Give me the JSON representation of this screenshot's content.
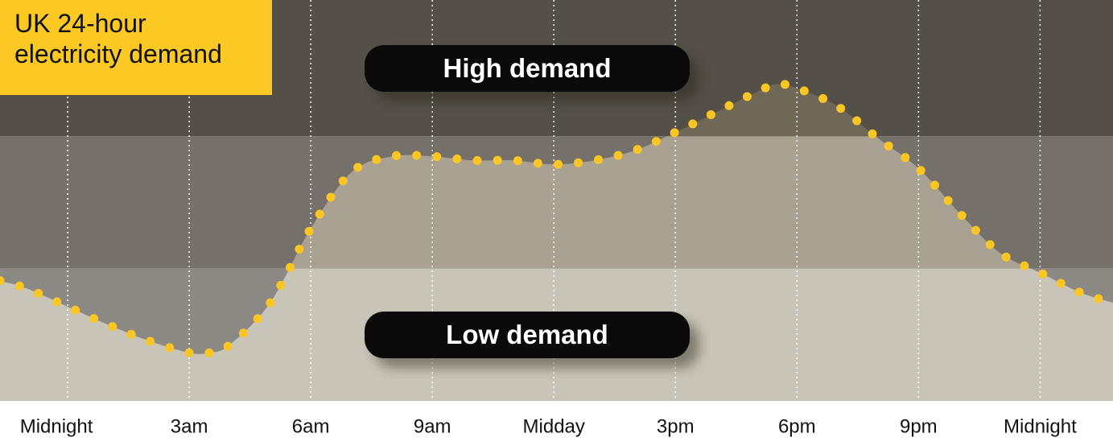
{
  "chart_data": {
    "type": "line",
    "title": "UK 24-hour electricity demand",
    "x": [
      -1.67,
      -1,
      0,
      1,
      2,
      3,
      3.5,
      4,
      5,
      6,
      7,
      8,
      9,
      10,
      11,
      12,
      13,
      14,
      15,
      16,
      17,
      17.5,
      18,
      19,
      20,
      21,
      22,
      23,
      24,
      25,
      25.8
    ],
    "values": [
      30,
      28,
      23.5,
      19,
      15,
      12,
      12,
      14,
      24.5,
      43,
      57,
      61,
      61,
      60,
      60,
      59,
      60,
      62.5,
      67,
      72,
      77,
      79,
      78,
      73.5,
      65.5,
      58,
      47,
      37,
      32,
      27,
      24.5
    ],
    "color": "#f9c623",
    "xlim": [
      -1.67,
      25.8
    ],
    "ylim": [
      0,
      100
    ],
    "xticks": [
      {
        "value": 0,
        "label": "Midnight"
      },
      {
        "value": 3,
        "label": "3am"
      },
      {
        "value": 6,
        "label": "6am"
      },
      {
        "value": 9,
        "label": "9am"
      },
      {
        "value": 12,
        "label": "Midday"
      },
      {
        "value": 15,
        "label": "3pm"
      },
      {
        "value": 18,
        "label": "6pm"
      },
      {
        "value": 21,
        "label": "9pm"
      },
      {
        "value": 24,
        "label": "Midnight"
      }
    ],
    "grid": true,
    "bands": [
      {
        "label": "Low demand",
        "ylim": [
          0,
          33
        ]
      },
      {
        "label": "High demand",
        "ylim": [
          66,
          100
        ]
      }
    ]
  }
}
